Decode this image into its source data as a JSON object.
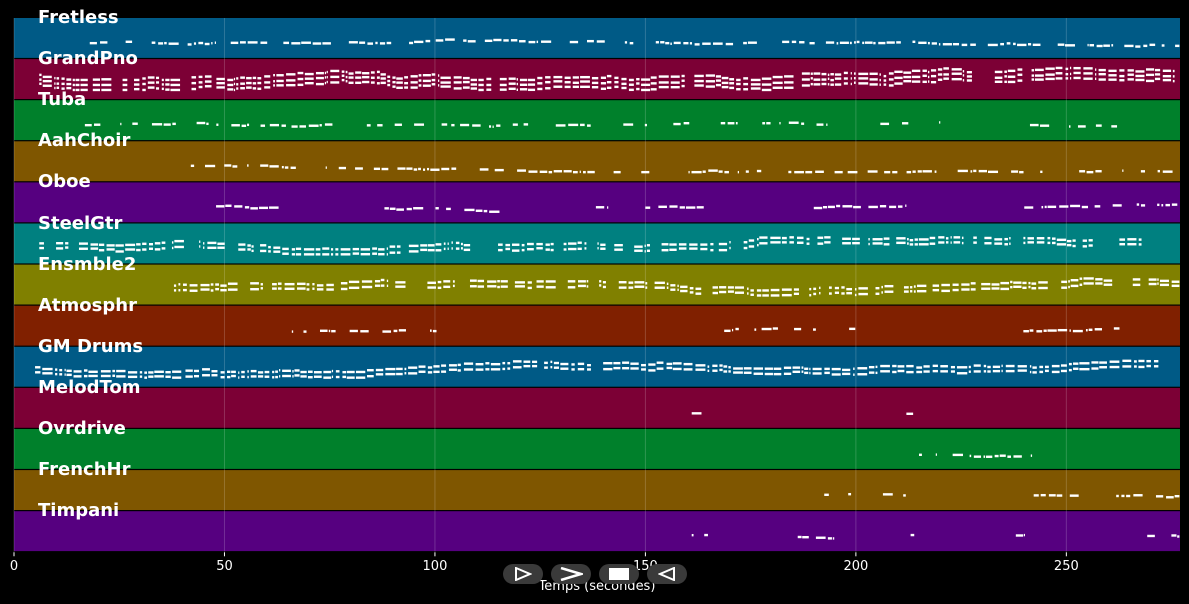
{
  "chart_data": {
    "type": "piano-roll",
    "xlabel": "Temps (secondes)",
    "xlim": [
      0,
      277
    ],
    "xticks": [
      0,
      50,
      100,
      150,
      200,
      250
    ],
    "grid": true,
    "tracks": [
      {
        "name": "Fretless",
        "color": "#005a86",
        "active": [
          [
            18,
            277
          ]
        ],
        "density": 0.7,
        "layers": 1
      },
      {
        "name": "GrandPno",
        "color": "#7c0035",
        "active": [
          [
            6,
            277
          ]
        ],
        "density": 0.95,
        "layers": 3
      },
      {
        "name": "Tuba",
        "color": "#00802b",
        "active": [
          [
            13,
            220
          ],
          [
            238,
            263
          ]
        ],
        "density": 0.45,
        "layers": 1
      },
      {
        "name": "AahChoir",
        "color": "#7f5600",
        "active": [
          [
            42,
            277
          ]
        ],
        "density": 0.6,
        "layers": 1
      },
      {
        "name": "Oboe",
        "color": "#560080",
        "active": [
          [
            48,
            63
          ],
          [
            88,
            116
          ],
          [
            136,
            141
          ],
          [
            149,
            164
          ],
          [
            190,
            212
          ],
          [
            240,
            277
          ]
        ],
        "density": 0.8,
        "layers": 1
      },
      {
        "name": "SteelGtr",
        "color": "#008080",
        "active": [
          [
            6,
            268
          ]
        ],
        "density": 0.9,
        "layers": 2
      },
      {
        "name": "Ensmble2",
        "color": "#808000",
        "active": [
          [
            38,
            277
          ]
        ],
        "density": 0.85,
        "layers": 2
      },
      {
        "name": "Atmosphr",
        "color": "#802000",
        "active": [
          [
            66,
            104
          ],
          [
            167,
            200
          ],
          [
            238,
            263
          ]
        ],
        "density": 0.65,
        "layers": 1
      },
      {
        "name": "GM Drums",
        "color": "#005a86",
        "active": [
          [
            5,
            272
          ]
        ],
        "density": 0.95,
        "layers": 2
      },
      {
        "name": "MelodTom",
        "color": "#7c0035",
        "active": [
          [
            161,
            164
          ],
          [
            212,
            214
          ]
        ],
        "density": 0.8,
        "layers": 1
      },
      {
        "name": "Ovrdrive",
        "color": "#00802b",
        "active": [
          [
            215,
            242
          ]
        ],
        "density": 0.8,
        "layers": 1
      },
      {
        "name": "FrenchHr",
        "color": "#7f5600",
        "active": [
          [
            191,
            199
          ],
          [
            205,
            212
          ],
          [
            240,
            277
          ]
        ],
        "density": 0.55,
        "layers": 1
      },
      {
        "name": "Timpani",
        "color": "#560080",
        "active": [
          [
            161,
            165
          ],
          [
            184,
            195
          ],
          [
            213,
            216
          ],
          [
            238,
            240
          ],
          [
            265,
            277
          ]
        ],
        "density": 0.5,
        "layers": 1
      }
    ]
  },
  "controls": {
    "play_forward": "⊳",
    "fast_forward": "≻",
    "stop": "■",
    "play_back": "⊲"
  }
}
